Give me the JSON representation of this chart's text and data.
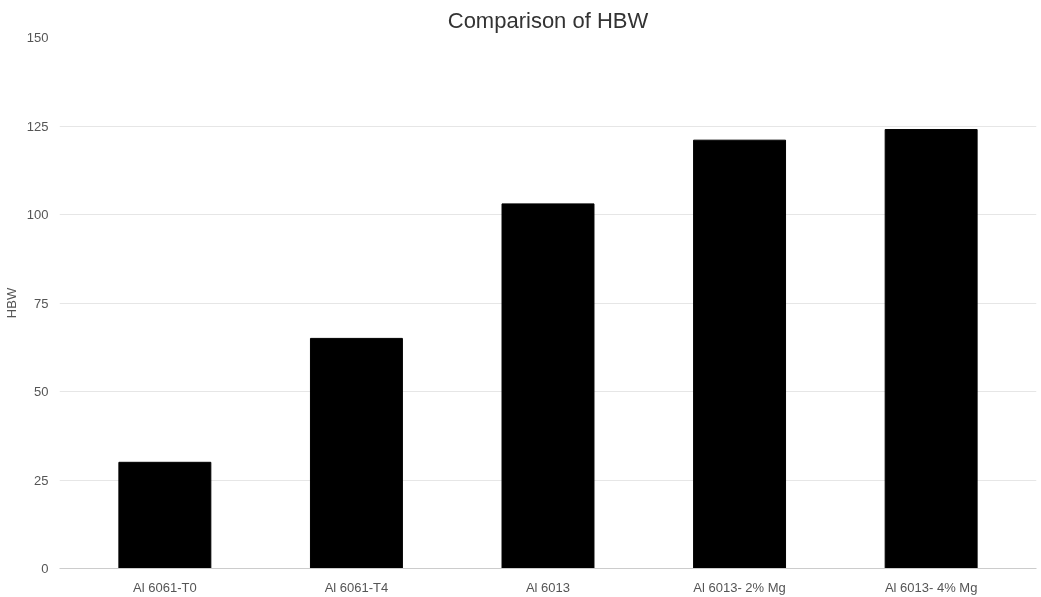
{
  "chart_data": {
    "type": "bar",
    "title": "Comparison of HBW",
    "ylabel": "HBW",
    "categories": [
      "Al 6061-T0",
      "Al 6061-T4",
      "Al 6013",
      "Al 6013- 2% Mg",
      "Al 6013- 4% Mg"
    ],
    "values": [
      30,
      65,
      103,
      121,
      124
    ],
    "color": "#000000",
    "ylim": [
      0,
      150
    ],
    "yticks": [
      0,
      25,
      50,
      75,
      100,
      125,
      150
    ],
    "grid": "y"
  }
}
